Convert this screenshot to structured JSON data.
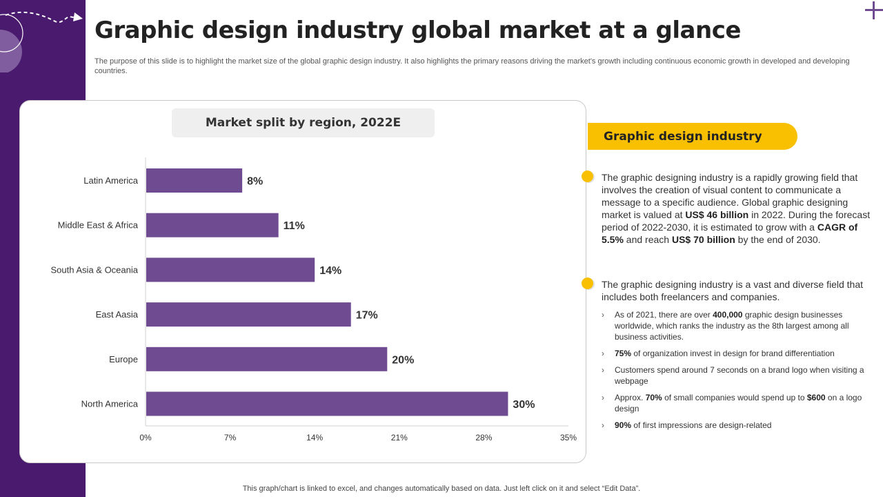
{
  "title": "Graphic design industry global market at a glance",
  "subtitle": "The purpose of this slide is to highlight the market size of the global graphic design industry. It also highlights the primary reasons driving the market's growth including continuous economic growth in developed and developing countries.",
  "colors": {
    "sidebar": "#4a1a6e",
    "bar": "#6f4b92",
    "accent": "#f8c000"
  },
  "chart_data": {
    "type": "bar",
    "orientation": "horizontal",
    "title": "Market split by region, 2022E",
    "categories": [
      "Latin America",
      "Middle East & Africa",
      "South Asia & Oceania",
      "East Aasia",
      "Europe",
      "North America"
    ],
    "values": [
      8,
      11,
      14,
      17,
      20,
      30
    ],
    "value_labels": [
      "8%",
      "11%",
      "14%",
      "17%",
      "20%",
      "30%"
    ],
    "xlim": [
      0,
      35
    ],
    "xticks": [
      0,
      7,
      14,
      21,
      28,
      35
    ],
    "xtick_labels": [
      "0%",
      "7%",
      "14%",
      "21%",
      "28%",
      "35%"
    ],
    "grid": false
  },
  "info": {
    "heading": "Graphic design industry",
    "p1": [
      {
        "t": "The graphic designing industry is a rapidly growing field that involves the creation of visual content to communicate a message to a specific audience. Global graphic designing market is valued at "
      },
      {
        "t": "US$ 46 billion",
        "b": true
      },
      {
        "t": " in 2022. During the forecast period of 2022-2030, it is estimated to grow with a "
      },
      {
        "t": "CAGR of 5.5%",
        "b": true
      },
      {
        "t": "  and reach "
      },
      {
        "t": "US$ 70 billion",
        "b": true
      },
      {
        "t": " by the end of 2030."
      }
    ],
    "p2": "The graphic designing industry is a vast and diverse field that includes both freelancers and companies.",
    "bullet_marker": "›",
    "bullets": [
      [
        {
          "t": "As of 2021, there are over "
        },
        {
          "t": "400,000",
          "b": true
        },
        {
          "t": " graphic design businesses worldwide,  which ranks the industry as the 8th largest among  all business activities."
        }
      ],
      [
        {
          "t": "75%",
          "b": true
        },
        {
          "t": " of organization invest in design for brand differentiation"
        }
      ],
      [
        {
          "t": "Customers spend around 7 seconds on a brand logo when visiting a webpage"
        }
      ],
      [
        {
          "t": "Approx. "
        },
        {
          "t": "70%",
          "b": true
        },
        {
          "t": " of small companies would spend up to "
        },
        {
          "t": "$600",
          "b": true
        },
        {
          "t": " on a logo design"
        }
      ],
      [
        {
          "t": "90%",
          "b": true
        },
        {
          "t": " of first impressions are design-related"
        }
      ]
    ]
  },
  "footer": "This graph/chart is linked to excel,  and changes automatically based on data. Just left click on it and select “Edit Data”."
}
